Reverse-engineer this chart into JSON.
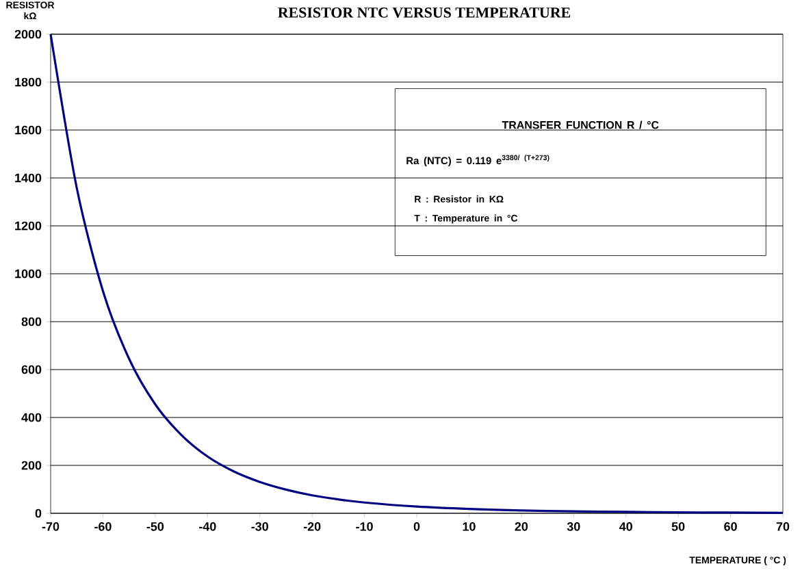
{
  "chart_data": {
    "type": "line",
    "title": "RESISTOR NTC VERSUS TEMPERATURE",
    "ylabel": "RESISTOR kΩ",
    "xlabel": "TEMPERATURE ( °C )",
    "x": [
      -70,
      -65,
      -60,
      -55,
      -50,
      -45,
      -40,
      -35,
      -30,
      -25,
      -20,
      -15,
      -10,
      0,
      10,
      20,
      30,
      40,
      50,
      60,
      70
    ],
    "series": [
      {
        "color": "#000080",
        "values": [
          2000,
          1358,
          928,
          645,
          455,
          327,
          237,
          175,
          131,
          99,
          75,
          58,
          45,
          28,
          18,
          12,
          8,
          6,
          4,
          3,
          2
        ]
      }
    ],
    "xlim": [
      -70,
      70
    ],
    "xticks": [
      -70,
      -60,
      -50,
      -40,
      -30,
      -20,
      -10,
      0,
      10,
      20,
      30,
      40,
      50,
      60,
      70
    ],
    "ylim": [
      0,
      2000
    ],
    "yticks": [
      0,
      200,
      400,
      600,
      800,
      1000,
      1200,
      1400,
      1600,
      1800,
      2000
    ],
    "grid": "y",
    "legend": false,
    "marker": "none",
    "line_style": "solid",
    "annotations": [
      "TRANSFER FUNCTION R / °C",
      "Ra (NTC)  = 0.119 e$^{3380/ (T+273)}$",
      "R  : Resistor in KΩ",
      "T   : Temperature in °C"
    ]
  }
}
